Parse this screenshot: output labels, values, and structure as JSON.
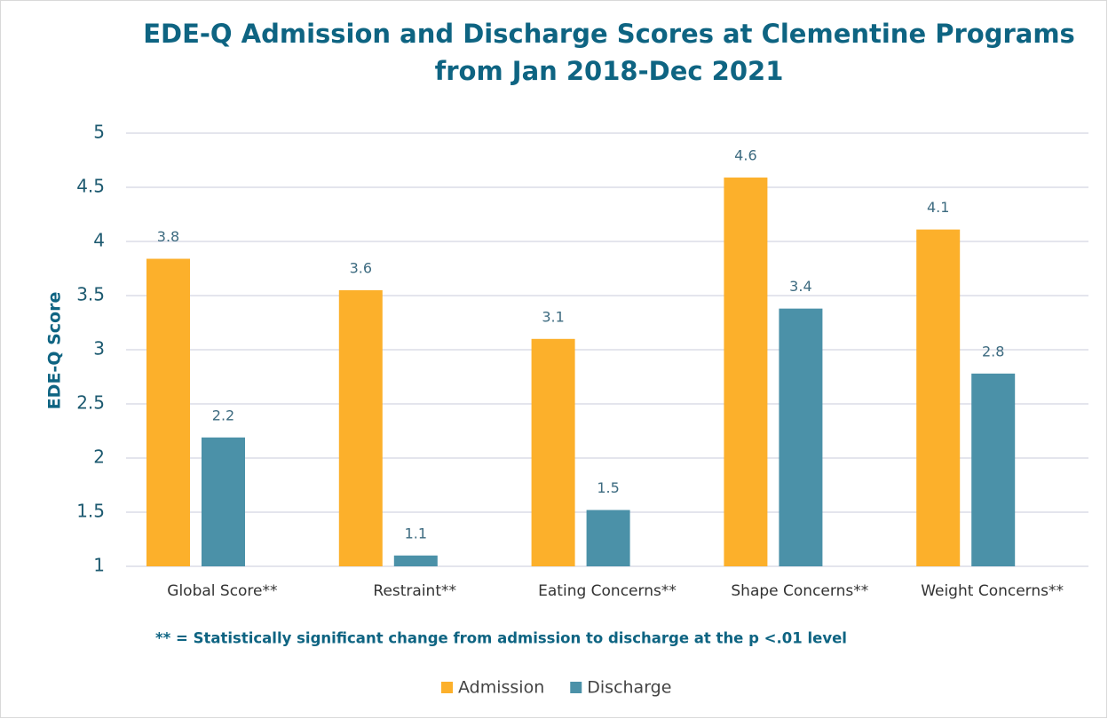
{
  "chart_data": {
    "type": "bar",
    "title": [
      "EDE-Q Admission and Discharge Scores at Clementine Programs",
      "from Jan 2018-Dec 2021"
    ],
    "y_label": "EDE-Q Score",
    "note": "** = Statistically significant change from admission to discharge at the p <.01 level",
    "categories": [
      "Global Score**",
      "Restraint**",
      "Eating Concerns**",
      "Shape Concerns**",
      "Weight Concerns**"
    ],
    "series": [
      {
        "name": "Admission",
        "color": "#fcb02b",
        "values": [
          3.84,
          3.55,
          3.1,
          4.59,
          4.11
        ],
        "value_labels": [
          "3.8",
          "3.6",
          "3.1",
          "4.6",
          "4.1"
        ]
      },
      {
        "name": "Discharge",
        "color": "#4b91a8",
        "values": [
          2.19,
          1.1,
          1.52,
          3.38,
          2.78
        ],
        "value_labels": [
          "2.2",
          "1.1",
          "1.5",
          "3.4",
          "2.8"
        ]
      }
    ],
    "ylim": [
      1,
      5
    ],
    "yticks": [
      1,
      1.5,
      2,
      2.5,
      3,
      3.5,
      4,
      4.5,
      5
    ],
    "grid": true,
    "legend": "bottom"
  }
}
